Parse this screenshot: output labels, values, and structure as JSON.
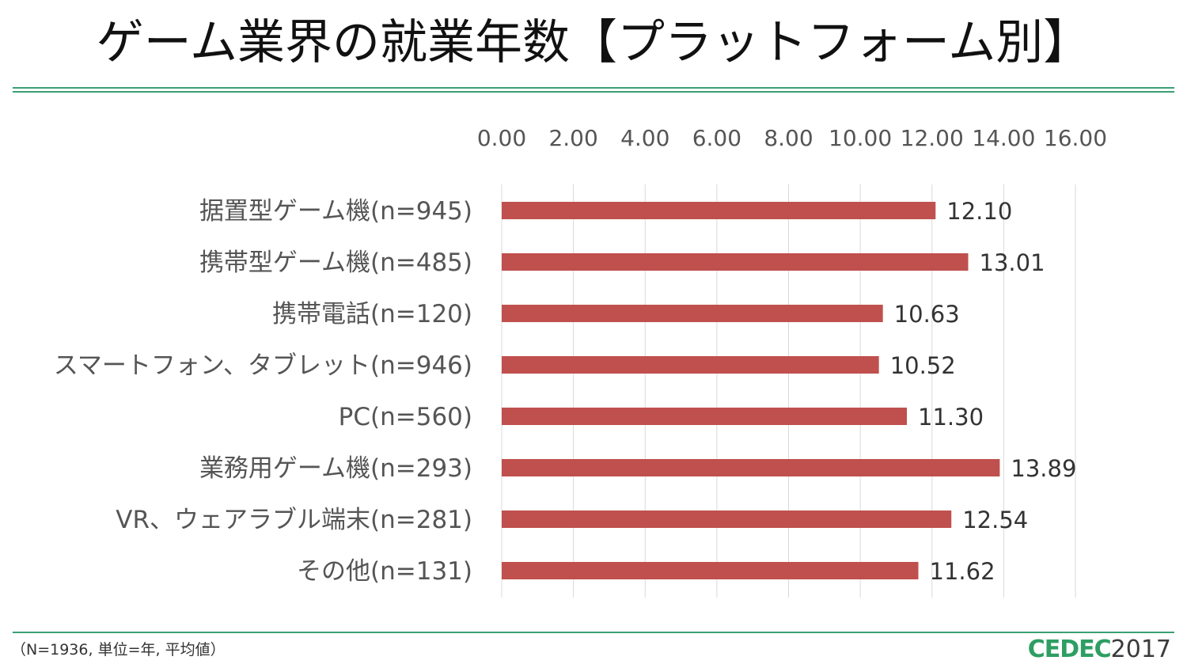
{
  "header": {
    "title": "ゲーム業界の就業年数【プラットフォーム別】"
  },
  "footer": {
    "note": "（N=1936, 単位=年, 平均値）",
    "logo_text": "CEDEC",
    "logo_year": "2017"
  },
  "colors": {
    "bar": "#c0504d",
    "accent_rule": "#3aa073",
    "logo_cedec": "#2e9e63",
    "logo_year": "#3b3b3b",
    "grid": "#d9d9d9"
  },
  "chart_data": {
    "type": "bar",
    "orientation": "horizontal",
    "title": "",
    "xlabel": "",
    "ylabel": "",
    "xlim": [
      0,
      16
    ],
    "ticks": [
      "0.00",
      "2.00",
      "4.00",
      "6.00",
      "8.00",
      "10.00",
      "12.00",
      "14.00",
      "16.00"
    ],
    "tick_values": [
      0,
      2,
      4,
      6,
      8,
      10,
      12,
      14,
      16
    ],
    "axis_position": "top",
    "grid": true,
    "legend": "none",
    "categories": [
      "据置型ゲーム機(n=945)",
      "携帯型ゲーム機(n=485)",
      "携帯電話(n=120)",
      "スマートフォン、タブレット(n=946)",
      "PC(n=560)",
      "業務用ゲーム機(n=293)",
      "VR、ウェアラブル端末(n=281)",
      "その他(n=131)"
    ],
    "values": [
      12.1,
      13.01,
      10.63,
      10.52,
      11.3,
      13.89,
      12.54,
      11.62
    ],
    "value_labels": [
      "12.10",
      "13.01",
      "10.63",
      "10.52",
      "11.30",
      "13.89",
      "12.54",
      "11.62"
    ]
  }
}
